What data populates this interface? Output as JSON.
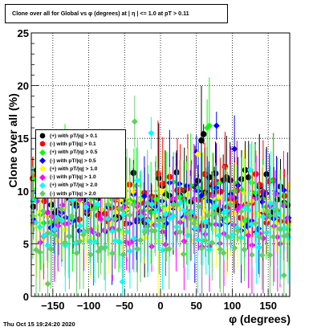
{
  "title": "Clone  over all for Global vs φ (degrees) at | η | <= 1.0 at pT > 0.11",
  "datestamp": "Thu Oct 15 19:24:20 2020",
  "colors": {
    "axes": "#000000",
    "grid": "#000000",
    "background": "#ffffff"
  },
  "chart_data": {
    "type": "scatter",
    "title": "Clone  over all for Global vs φ (degrees) at | η | <= 1.0 at pT > 0.11",
    "xlabel": "φ (degrees)",
    "ylabel": "Clone  over all (%)",
    "xlim": [
      -180,
      180
    ],
    "ylim": [
      0,
      25
    ],
    "x_ticks": [
      -150,
      -100,
      -50,
      0,
      50,
      100,
      150
    ],
    "y_ticks": [
      0,
      5,
      10,
      15,
      20,
      25
    ],
    "x_tick_labels": [
      "−150",
      "−100",
      "−50",
      "0",
      "50",
      "100",
      "150"
    ],
    "y_tick_labels": [
      "0",
      "5",
      "10",
      "15",
      "20",
      "25"
    ],
    "grid": true,
    "legend_position": "left",
    "bins": 72,
    "series": [
      {
        "name": "(+) with pT/|q| > 0.1",
        "color": "#000000",
        "marker": "circle",
        "y_base": 9.5,
        "highlights": [
          [
            57,
            14.8
          ],
          [
            60,
            15.4
          ],
          [
            65,
            11.5
          ],
          [
            75,
            9.8
          ]
        ]
      },
      {
        "name": "(-) with pT/|q| > 0.1",
        "color": "#ff0000",
        "marker": "circle",
        "y_base": 9.2,
        "highlights": [
          [
            -147,
            11.2
          ],
          [
            90,
            12.3
          ],
          [
            143,
            9.9
          ]
        ]
      },
      {
        "name": "(+) with pT/|q| > 0.5",
        "color": "#00ff00",
        "marker": "diamond",
        "y_base": 8.8,
        "highlights": [
          [
            65,
            16.0
          ],
          [
            68,
            16.2
          ],
          [
            -172,
            10.2
          ]
        ]
      },
      {
        "name": "(-) with pT/|q| > 0.5",
        "color": "#0000ff",
        "marker": "diamond",
        "y_base": 8.6,
        "highlights": [
          [
            -67,
            13.5
          ],
          [
            50,
            13.7
          ],
          [
            78,
            16.2
          ],
          [
            103,
            14.0
          ]
        ]
      },
      {
        "name": "(+) with pT/|q| > 1.0",
        "color": "#ffff00",
        "marker": "diamond",
        "y_base": 7.6,
        "highlights": [
          [
            -132,
            10.5
          ],
          [
            52,
            13.5
          ]
        ]
      },
      {
        "name": "(-) with pT/|q| > 1.0",
        "color": "#ff00ff",
        "marker": "diamond",
        "y_base": 7.2,
        "highlights": [
          [
            -128,
            9.6
          ],
          [
            160,
            9.7
          ]
        ]
      },
      {
        "name": "(+) with pT/|q| > 2.0",
        "color": "#00ffff",
        "marker": "diamond",
        "y_base": 6.8,
        "highlights": [
          [
            -13,
            15.5
          ],
          [
            -32,
            11.0
          ],
          [
            -53,
            1.4
          ],
          [
            125,
            12.0
          ]
        ]
      },
      {
        "name": "(-) with pT/|q| > 2.0",
        "color": "#66cc66",
        "marker": "diamond",
        "y_base": 6.4,
        "highlights": [
          [
            -36,
            16.6
          ],
          [
            -78,
            10.5
          ],
          [
            -157,
            1.2
          ],
          [
            172,
            2.0
          ]
        ]
      }
    ]
  }
}
